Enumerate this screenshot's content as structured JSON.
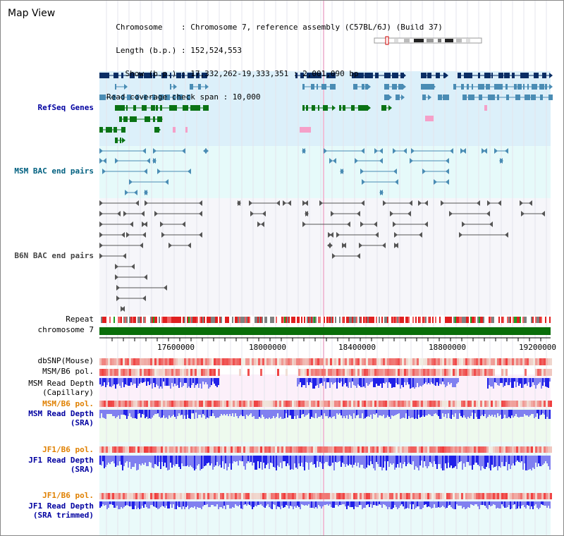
{
  "title": "Map View",
  "header": {
    "lines": [
      "  Chromosome    : Chromosome 7, reference assembly (C57BL/6J) (Build 37)",
      "  Length (b.p.) : 152,524,553",
      "    Show (b.p.) : 17,332,262-19,333,351 : 2,001,090 bp",
      "Read coverage check span : 10,000"
    ]
  },
  "tracks": {
    "refseq": "RefSeq Genes",
    "msm_bac": "MSM BAC end pairs",
    "b6n_bac": "B6N BAC end pairs",
    "repeat": "Repeat",
    "chromosome": "chromosome 7",
    "dbsnp": "dbSNP(Mouse)",
    "msm_pol": "MSM/B6 pol.",
    "msm_depth_cap": [
      "MSM Read Depth",
      "(Capillary)"
    ],
    "msm_pol2": "MSM/B6 pol.",
    "msm_depth_sra": [
      "MSM Read Depth",
      "(SRA)"
    ],
    "jf1_pol": "JF1/B6 pol.",
    "jf1_depth_sra": [
      "JF1 Read Depth",
      "(SRA)"
    ],
    "jf1_pol2": "JF1/B6 pol.",
    "jf1_depth_trim": [
      "JF1 Read Depth",
      "(SRA trimmed)"
    ]
  },
  "ruler": {
    "ticks": [
      "17600000",
      "18000000",
      "18400000",
      "18800000",
      "19200000"
    ]
  },
  "colors": {
    "refseq_bg": "#dcf0fa",
    "bac_bg": "#e6fafa",
    "gene_navy": "#0a2d64",
    "gene_steel": "#4a8cb4",
    "gene_green": "#0a7314",
    "gene_pink": "#f5a0c8",
    "chromosome": "#0a6e0a",
    "depth_blue": "#5050f0",
    "snp_red": "#f04040",
    "label_blue": "#0000a0",
    "label_orange": "#e08000",
    "label_teal": "#006080"
  }
}
